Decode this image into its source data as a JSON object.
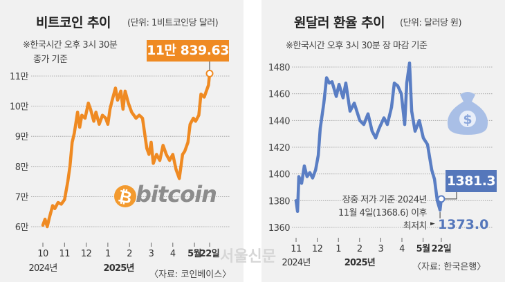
{
  "colors": {
    "bitcoin": "#ef8a22",
    "won": "#5a7ec4",
    "callout_won": "#5577bb"
  },
  "watermark": "서울신문",
  "chart_data": [
    {
      "type": "line",
      "title": "비트코인 추이",
      "unit": "(단위: 1비트코인당 달러)",
      "note": [
        "※한국시간 오후 3시 30분",
        "종가 기준"
      ],
      "callout": "11만 839.63",
      "source": "〈자료: 코인베이스〉",
      "logo_text": "bitcoin",
      "ylim": [
        60000,
        110000
      ],
      "yticks": [
        {
          "v": 110000,
          "label": "11만"
        },
        {
          "v": 100000,
          "label": "10만"
        },
        {
          "v": 90000,
          "label": "9만"
        },
        {
          "v": 80000,
          "label": "8만"
        },
        {
          "v": 70000,
          "label": "7만"
        },
        {
          "v": 60000,
          "label": "6만"
        }
      ],
      "xticks": [
        {
          "m": 0,
          "label": "10"
        },
        {
          "m": 1,
          "label": "11"
        },
        {
          "m": 2,
          "label": "12"
        },
        {
          "m": 3,
          "label": "1"
        },
        {
          "m": 4,
          "label": "2"
        },
        {
          "m": 5,
          "label": "3"
        },
        {
          "m": 6,
          "label": "4"
        },
        {
          "m": 7,
          "label": "5월",
          "bold": true
        },
        {
          "m": 7.7,
          "label": "22일",
          "bold": true
        }
      ],
      "years": [
        {
          "m": 0,
          "label": "2024년"
        },
        {
          "m": 3.5,
          "label": "2025년",
          "bold": true
        }
      ],
      "xunit": "months since 2024-10-01",
      "series": {
        "name": "비트코인",
        "x": [
          0,
          0.1,
          0.2,
          0.3,
          0.45,
          0.55,
          0.7,
          0.85,
          1.0,
          1.15,
          1.25,
          1.35,
          1.45,
          1.6,
          1.7,
          1.8,
          1.95,
          2.1,
          2.2,
          2.35,
          2.45,
          2.6,
          2.75,
          2.9,
          3.0,
          3.1,
          3.2,
          3.35,
          3.45,
          3.6,
          3.7,
          3.8,
          3.95,
          4.1,
          4.3,
          4.45,
          4.6,
          4.8,
          4.9,
          5.0,
          5.1,
          5.25,
          5.4,
          5.55,
          5.7,
          5.85,
          6.0,
          6.15,
          6.3,
          6.45,
          6.55,
          6.7,
          6.8,
          6.95,
          7.05,
          7.2,
          7.3,
          7.45,
          7.55,
          7.65,
          7.7
        ],
        "y": [
          60500,
          62500,
          60000,
          63000,
          67000,
          66000,
          68000,
          67500,
          69000,
          75000,
          80000,
          88000,
          91000,
          98000,
          93000,
          97000,
          96000,
          101000,
          99000,
          95000,
          98000,
          94000,
          97000,
          96000,
          94000,
          99000,
          102000,
          106000,
          102000,
          105000,
          99000,
          105000,
          101000,
          98000,
          96000,
          97000,
          96000,
          86000,
          84000,
          88000,
          81000,
          84000,
          82000,
          87000,
          84000,
          82000,
          84000,
          79000,
          76000,
          84000,
          85000,
          88000,
          94000,
          96000,
          95000,
          97000,
          104000,
          103000,
          105000,
          107000,
          110839.63
        ]
      }
    },
    {
      "type": "line",
      "title": "원달러 환율 추이",
      "unit": "(단위: 달러당 원)",
      "note": [
        "※한국시간 오후 3시 30분 장 마감 기준"
      ],
      "callout": "1381.3",
      "annotation": [
        "장중 저가 기준 2024년",
        "11월 4일(1368.6) 이후",
        "최저치"
      ],
      "low_value": "1373.0",
      "source": "〈자료: 한국은행〉",
      "ylim": [
        1360,
        1480
      ],
      "yticks": [
        {
          "v": 1480,
          "label": "1480"
        },
        {
          "v": 1460,
          "label": "1460"
        },
        {
          "v": 1440,
          "label": "1440"
        },
        {
          "v": 1420,
          "label": "1420"
        },
        {
          "v": 1400,
          "label": "1400"
        },
        {
          "v": 1380,
          "label": "1380"
        },
        {
          "v": 1360,
          "label": "1360"
        }
      ],
      "xticks": [
        {
          "m": 1,
          "label": "11"
        },
        {
          "m": 2,
          "label": "12"
        },
        {
          "m": 3,
          "label": "1"
        },
        {
          "m": 4,
          "label": "2"
        },
        {
          "m": 5,
          "label": "3"
        },
        {
          "m": 6,
          "label": "4"
        },
        {
          "m": 7,
          "label": "5월",
          "bold": true
        },
        {
          "m": 7.86,
          "label": "22일",
          "bold": true
        }
      ],
      "years": [
        {
          "m": 1,
          "label": "2024년"
        },
        {
          "m": 4,
          "label": "2025년",
          "bold": true
        }
      ],
      "xunit": "months since 2024-10-01",
      "series": {
        "name": "원달러 환율",
        "x": [
          1.0,
          1.07,
          1.13,
          1.26,
          1.39,
          1.52,
          1.65,
          1.78,
          1.92,
          2.05,
          2.14,
          2.31,
          2.44,
          2.57,
          2.7,
          2.9,
          3.03,
          3.22,
          3.35,
          3.55,
          3.75,
          4.01,
          4.2,
          4.4,
          4.59,
          4.76,
          4.92,
          5.15,
          5.31,
          5.51,
          5.64,
          5.8,
          5.97,
          6.13,
          6.23,
          6.36,
          6.46,
          6.62,
          6.82,
          7.01,
          7.21,
          7.41,
          7.54,
          7.67,
          7.8,
          7.86
        ],
        "y": [
          1380,
          1372,
          1398,
          1393,
          1406,
          1398,
          1401,
          1397,
          1403,
          1414,
          1434,
          1453,
          1472,
          1468,
          1469,
          1458,
          1467,
          1457,
          1468,
          1447,
          1453,
          1440,
          1437,
          1445,
          1432,
          1427,
          1434,
          1442,
          1437,
          1450,
          1468,
          1466,
          1460,
          1437,
          1468,
          1483,
          1447,
          1432,
          1440,
          1427,
          1422,
          1403,
          1396,
          1380,
          1373,
          1381.3
        ]
      }
    }
  ]
}
